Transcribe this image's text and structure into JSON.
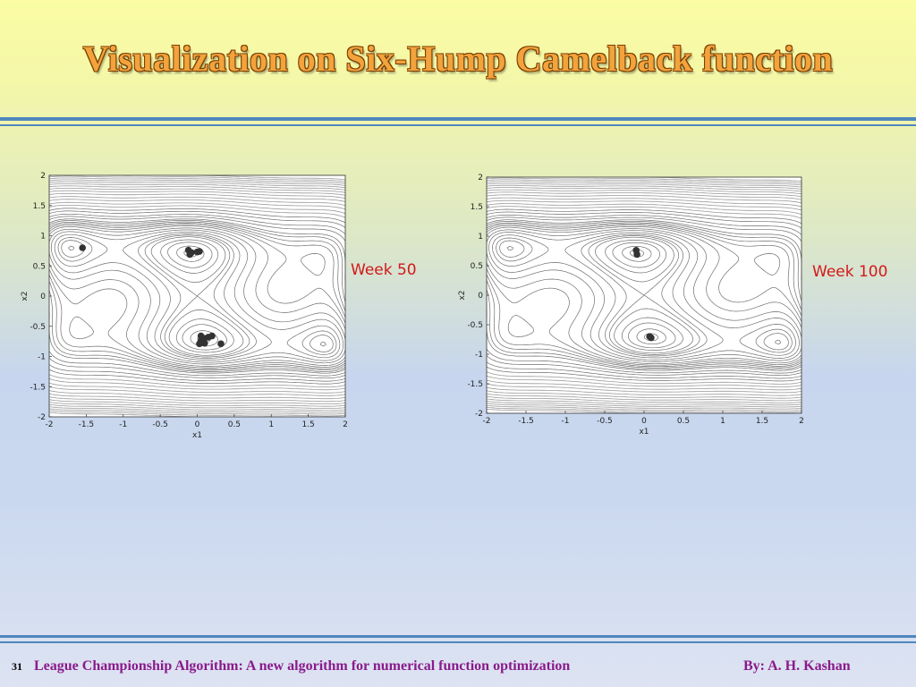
{
  "slide": {
    "title": "Visualization on Six-Hump Camelback function",
    "page_number": "31",
    "footer_title": "League Championship Algorithm:  A new algorithm for numerical function optimization",
    "author": "By: A. H. Kashan"
  },
  "colors": {
    "title": "#f2a33c",
    "rule": "#4f86bf",
    "week_label": "#d11919",
    "footer": "#8a1a8a",
    "points": "#333333"
  },
  "chart_data": [
    {
      "type": "scatter",
      "annotation": "Week 50",
      "xlabel": "x1",
      "ylabel": "x2",
      "xlim": [
        -2,
        2
      ],
      "ylim": [
        -2,
        2
      ],
      "xticks": [
        "-2",
        "-1.5",
        "-1",
        "-0.5",
        "0",
        "0.5",
        "1",
        "1.5",
        "2"
      ],
      "yticks": [
        "2",
        "1.5",
        "1",
        "0.5",
        "0",
        "-0.5",
        "-1",
        "-1.5",
        "-2"
      ],
      "contour": "six-hump camelback",
      "points": [
        {
          "x": -1.55,
          "y": 0.8
        },
        {
          "x": -0.12,
          "y": 0.76
        },
        {
          "x": -0.08,
          "y": 0.72
        },
        {
          "x": -0.1,
          "y": 0.69
        },
        {
          "x": 0.0,
          "y": 0.73
        },
        {
          "x": 0.03,
          "y": 0.74
        },
        {
          "x": 0.05,
          "y": -0.66
        },
        {
          "x": 0.1,
          "y": -0.7
        },
        {
          "x": 0.15,
          "y": -0.68
        },
        {
          "x": 0.2,
          "y": -0.66
        },
        {
          "x": 0.05,
          "y": -0.74
        },
        {
          "x": 0.03,
          "y": -0.79
        },
        {
          "x": 0.1,
          "y": -0.78
        },
        {
          "x": 0.32,
          "y": -0.79
        }
      ]
    },
    {
      "type": "scatter",
      "annotation": "Week 100",
      "xlabel": "x1",
      "ylabel": "x2",
      "xlim": [
        -2,
        2
      ],
      "ylim": [
        -2,
        2
      ],
      "xticks": [
        "-2",
        "-1.5",
        "-1",
        "-0.5",
        "0",
        "0.5",
        "1",
        "1.5",
        "2"
      ],
      "yticks": [
        "2",
        "1.5",
        "1",
        "0.5",
        "0",
        "-0.5",
        "-1",
        "-1.5",
        "-2"
      ],
      "contour": "six-hump camelback",
      "points": [
        {
          "x": -0.1,
          "y": 0.76
        },
        {
          "x": -0.09,
          "y": 0.69
        },
        {
          "x": 0.07,
          "y": -0.7
        },
        {
          "x": 0.09,
          "y": -0.72
        }
      ]
    }
  ]
}
